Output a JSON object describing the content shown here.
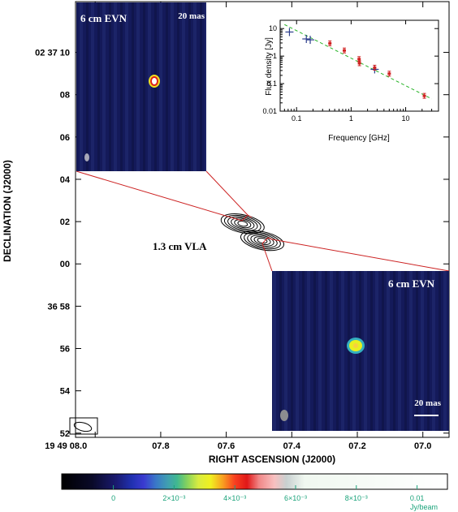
{
  "chart_data": {
    "type": "image",
    "main_panel": {
      "xlabel": "RIGHT ASCENSION (J2000)",
      "ylabel": "DECLINATION (J2000)",
      "x_ticks": [
        "19 49 08.0",
        "07.8",
        "07.6",
        "07.4",
        "07.2",
        "07.0"
      ],
      "y_ticks": [
        "02 37 10",
        "08",
        "06",
        "04",
        "02",
        "00",
        "36 58",
        "56",
        "54",
        "52"
      ],
      "y_tick_values_arcsec": [
        10,
        8,
        6,
        4,
        2,
        0,
        -2,
        -4,
        -6,
        -8
      ],
      "x_tick_values_sec": [
        8.0,
        7.8,
        7.6,
        7.4,
        7.2,
        7.0
      ],
      "x_range_sec": [
        8.06,
        6.92
      ],
      "y_range_arcsec": [
        -8.2,
        12.4
      ],
      "annotation": "1.3 cm VLA",
      "contour_components": [
        {
          "ra_sec": 7.55,
          "dec_arcsec": 1.9
        },
        {
          "ra_sec": 7.49,
          "dec_arcsec": 1.1
        }
      ]
    },
    "insets": [
      {
        "label": "6 cm EVN",
        "scale_label": "20 mas",
        "position": "top-left"
      },
      {
        "label": "6 cm EVN",
        "scale_label": "20 mas",
        "position": "bottom-right"
      }
    ],
    "spectrum": {
      "type": "scatter",
      "xlabel": "Frequency [GHz]",
      "ylabel": "Flux density [Jy]",
      "xscale": "log",
      "yscale": "log",
      "xlim": [
        0.05,
        40
      ],
      "ylim": [
        0.01,
        20
      ],
      "x_ticks": [
        "0.1",
        "1",
        "10"
      ],
      "x_tick_values": [
        0.1,
        1,
        10
      ],
      "y_ticks": [
        "0.01",
        "0.1",
        "1",
        "10"
      ],
      "y_tick_values": [
        0.01,
        0.1,
        1,
        10
      ],
      "series": [
        {
          "color": "#2c3e8c",
          "points": [
            [
              0.074,
              7.5
            ],
            [
              0.151,
              4.2
            ],
            [
              0.178,
              3.9
            ],
            [
              2.7,
              0.33
            ]
          ]
        },
        {
          "color": "#d02020",
          "points": [
            [
              0.408,
              2.9
            ],
            [
              0.75,
              1.6
            ],
            [
              1.4,
              0.78
            ],
            [
              1.42,
              0.55
            ],
            [
              2.7,
              0.38
            ],
            [
              5.0,
              0.23
            ],
            [
              22.0,
              0.036
            ]
          ]
        }
      ],
      "fit": {
        "color": "#2bb52b",
        "x": [
          0.06,
          30
        ],
        "y": [
          14,
          0.028
        ]
      }
    },
    "colorbar": {
      "ticks": [
        "0",
        "2×10⁻³",
        "4×10⁻³",
        "6×10⁻³",
        "8×10⁻³",
        "0.01"
      ],
      "tick_values": [
        0,
        0.002,
        0.004,
        0.006,
        0.008,
        0.01
      ],
      "range": [
        -0.0017,
        0.011
      ],
      "unit": "Jy/beam",
      "stops": [
        [
          -0.0017,
          "#000000"
        ],
        [
          -0.0007,
          "#0a0a28"
        ],
        [
          0.0001,
          "#1a1a70"
        ],
        [
          0.0006,
          "#2030b0"
        ],
        [
          0.001,
          "#3a3ad0"
        ],
        [
          0.0014,
          "#3a78c8"
        ],
        [
          0.0018,
          "#40a0b0"
        ],
        [
          0.0021,
          "#40b890"
        ],
        [
          0.0024,
          "#80d060"
        ],
        [
          0.0028,
          "#d8ec40"
        ],
        [
          0.0032,
          "#f0f020"
        ],
        [
          0.0036,
          "#f8a020"
        ],
        [
          0.004,
          "#f84020"
        ],
        [
          0.0044,
          "#e01818"
        ],
        [
          0.0048,
          "#f08888"
        ],
        [
          0.0053,
          "#f8c0c0"
        ],
        [
          0.0057,
          "#c8d0d0"
        ],
        [
          0.0063,
          "#f0f8f0"
        ],
        [
          0.011,
          "#ffffff"
        ]
      ]
    }
  }
}
